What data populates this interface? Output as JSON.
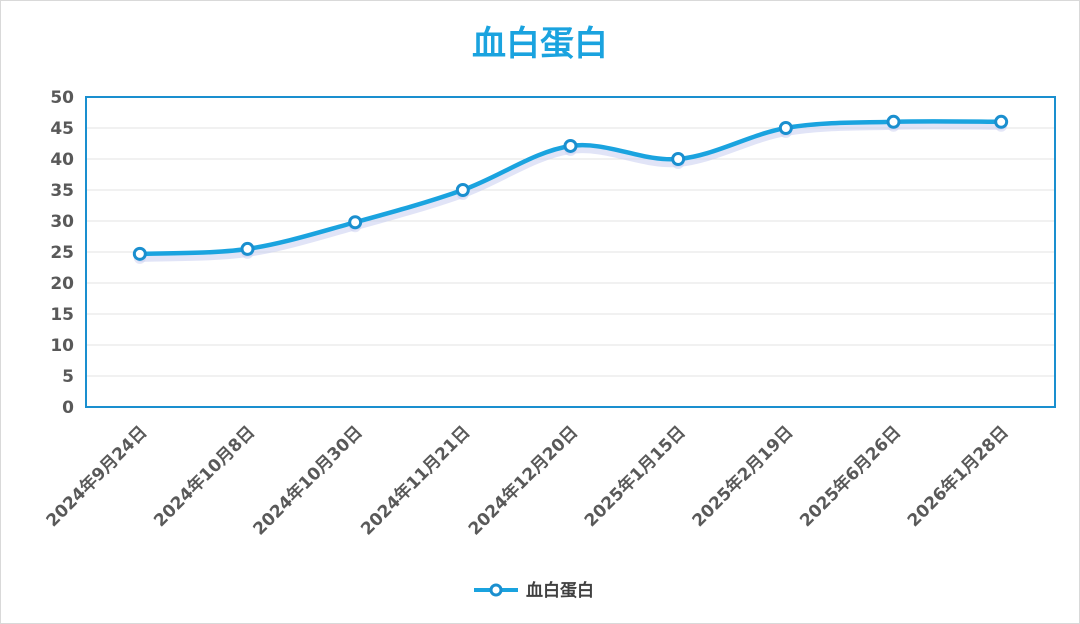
{
  "chart_data": {
    "type": "line",
    "title": "血白蛋白",
    "categories": [
      "2024年9月24日",
      "2024年10月8日",
      "2024年10月30日",
      "2024年11月21日",
      "2024年12月20日",
      "2025年1月15日",
      "2025年2月19日",
      "2025年6月26日",
      "2026年1月28日"
    ],
    "series": [
      {
        "name": "血白蛋白",
        "values": [
          24.7,
          25.5,
          29.8,
          35.0,
          42.1,
          40.0,
          45.0,
          46.0,
          46.0
        ],
        "color": "#1aa3df"
      }
    ],
    "xlabel": "",
    "ylabel": "",
    "ylim": [
      0,
      50
    ],
    "yticks": [
      0,
      5,
      10,
      15,
      20,
      25,
      30,
      35,
      40,
      45,
      50
    ],
    "grid": true,
    "legend": "bottom-center",
    "smooth": true,
    "colors": {
      "line": "#1aa3df",
      "marker_stroke": "#1a8fcf",
      "marker_fill": "#ffffff",
      "plot_border": "#1a8fcf",
      "grid": "#e3e3e3",
      "title": "#1aa3df"
    }
  }
}
